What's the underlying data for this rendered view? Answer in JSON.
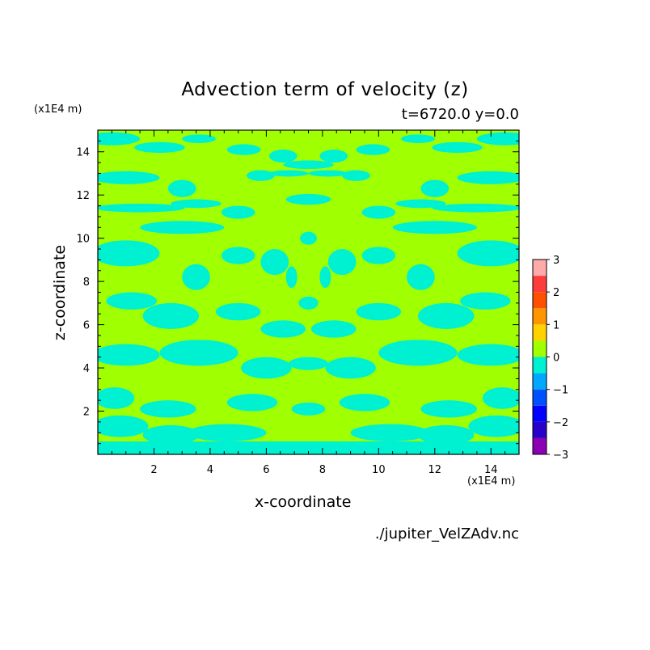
{
  "chart_data": {
    "type": "heatmap",
    "title": "Advection term of velocity (z)",
    "subtitle": "t=6720.0 y=0.0",
    "xlabel": "x-coordinate",
    "ylabel": "z-coordinate",
    "x_unit": "(x1E4 m)",
    "y_unit": "(x1E4 m)",
    "xlim": [
      0,
      15
    ],
    "ylim": [
      0,
      15
    ],
    "x_ticks": [
      "2",
      "4",
      "6",
      "8",
      "10",
      "12",
      "14"
    ],
    "y_ticks": [
      "2",
      "4",
      "6",
      "8",
      "10",
      "12",
      "14"
    ],
    "x_tick_values": [
      2,
      4,
      6,
      8,
      10,
      12,
      14
    ],
    "y_tick_values": [
      2,
      4,
      6,
      8,
      10,
      12,
      14
    ],
    "colorbar": {
      "levels": [
        -3,
        -2.5,
        -2,
        -1.5,
        -1,
        -0.5,
        0,
        0.5,
        1,
        1.5,
        2,
        2.5,
        3
      ],
      "labels": [
        "3",
        "2",
        "1",
        "0",
        "−1",
        "−2",
        "−3"
      ],
      "label_values": [
        3,
        2,
        1,
        0,
        -1,
        -2,
        -3
      ],
      "colors": [
        "#8c00b4",
        "#2800c8",
        "#0000ff",
        "#0050ff",
        "#00a8ff",
        "#00f0d2",
        "#a0ff00",
        "#ffd200",
        "#ff9600",
        "#ff5000",
        "#ff3c3c",
        "#ffaaaa"
      ]
    },
    "dominant_color": "#a0ff00",
    "negative_color": "#00f0d2",
    "field_note": "Field mostly between -0.5 and 0.5, symmetric about x=7.5"
  },
  "source": "./jupiter_VelZAdv.nc",
  "colors": {
    "frame": "#000000",
    "background": "#ffffff"
  }
}
